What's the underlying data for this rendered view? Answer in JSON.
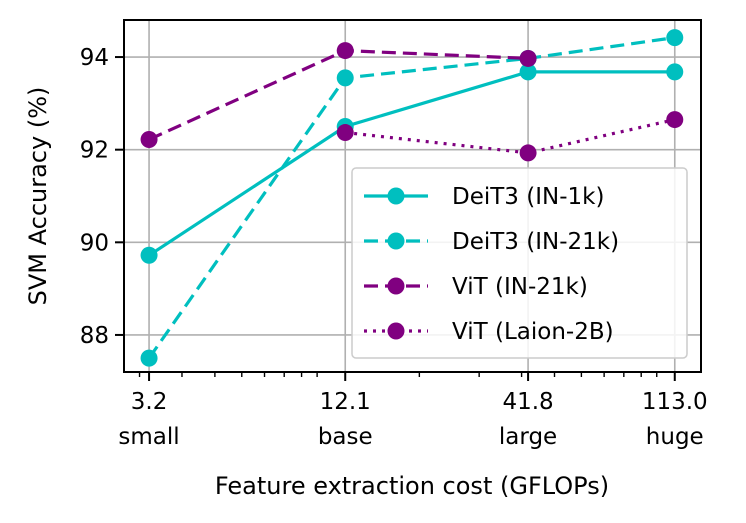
{
  "chart_data": {
    "type": "line",
    "title": "",
    "xlabel": "Feature extraction cost (GFLOPs)",
    "ylabel": "SVM Accuracy (%)",
    "x_scale": "log",
    "x": [
      3.2,
      12.1,
      41.8,
      113.0
    ],
    "x_tick_labels": [
      "3.2",
      "12.1",
      "41.8",
      "113.0"
    ],
    "x_tick_sublabels": [
      "small",
      "base",
      "large",
      "huge"
    ],
    "y_ticks": [
      88,
      90,
      92,
      94
    ],
    "y_tick_labels": [
      "88",
      "90",
      "92",
      "94"
    ],
    "xlim": [
      2.7,
      135
    ],
    "ylim": [
      87.2,
      94.8
    ],
    "grid": true,
    "legend_position": "lower-right",
    "series": [
      {
        "name": "DeiT3 (IN-1k)",
        "color": "#00bfbf",
        "linestyle": "solid",
        "values": [
          89.72,
          92.5,
          93.68,
          93.68
        ]
      },
      {
        "name": "DeiT3 (IN-21k)",
        "color": "#00bfbf",
        "linestyle": "dashed",
        "values": [
          87.5,
          93.55,
          93.97,
          94.42
        ]
      },
      {
        "name": "ViT (IN-21k)",
        "color": "#800080",
        "linestyle": "dashed",
        "values": [
          92.22,
          94.14,
          93.97,
          null
        ]
      },
      {
        "name": "ViT (Laion-2B)",
        "color": "#800080",
        "linestyle": "dotted",
        "values": [
          null,
          92.37,
          91.93,
          92.65
        ]
      }
    ]
  }
}
